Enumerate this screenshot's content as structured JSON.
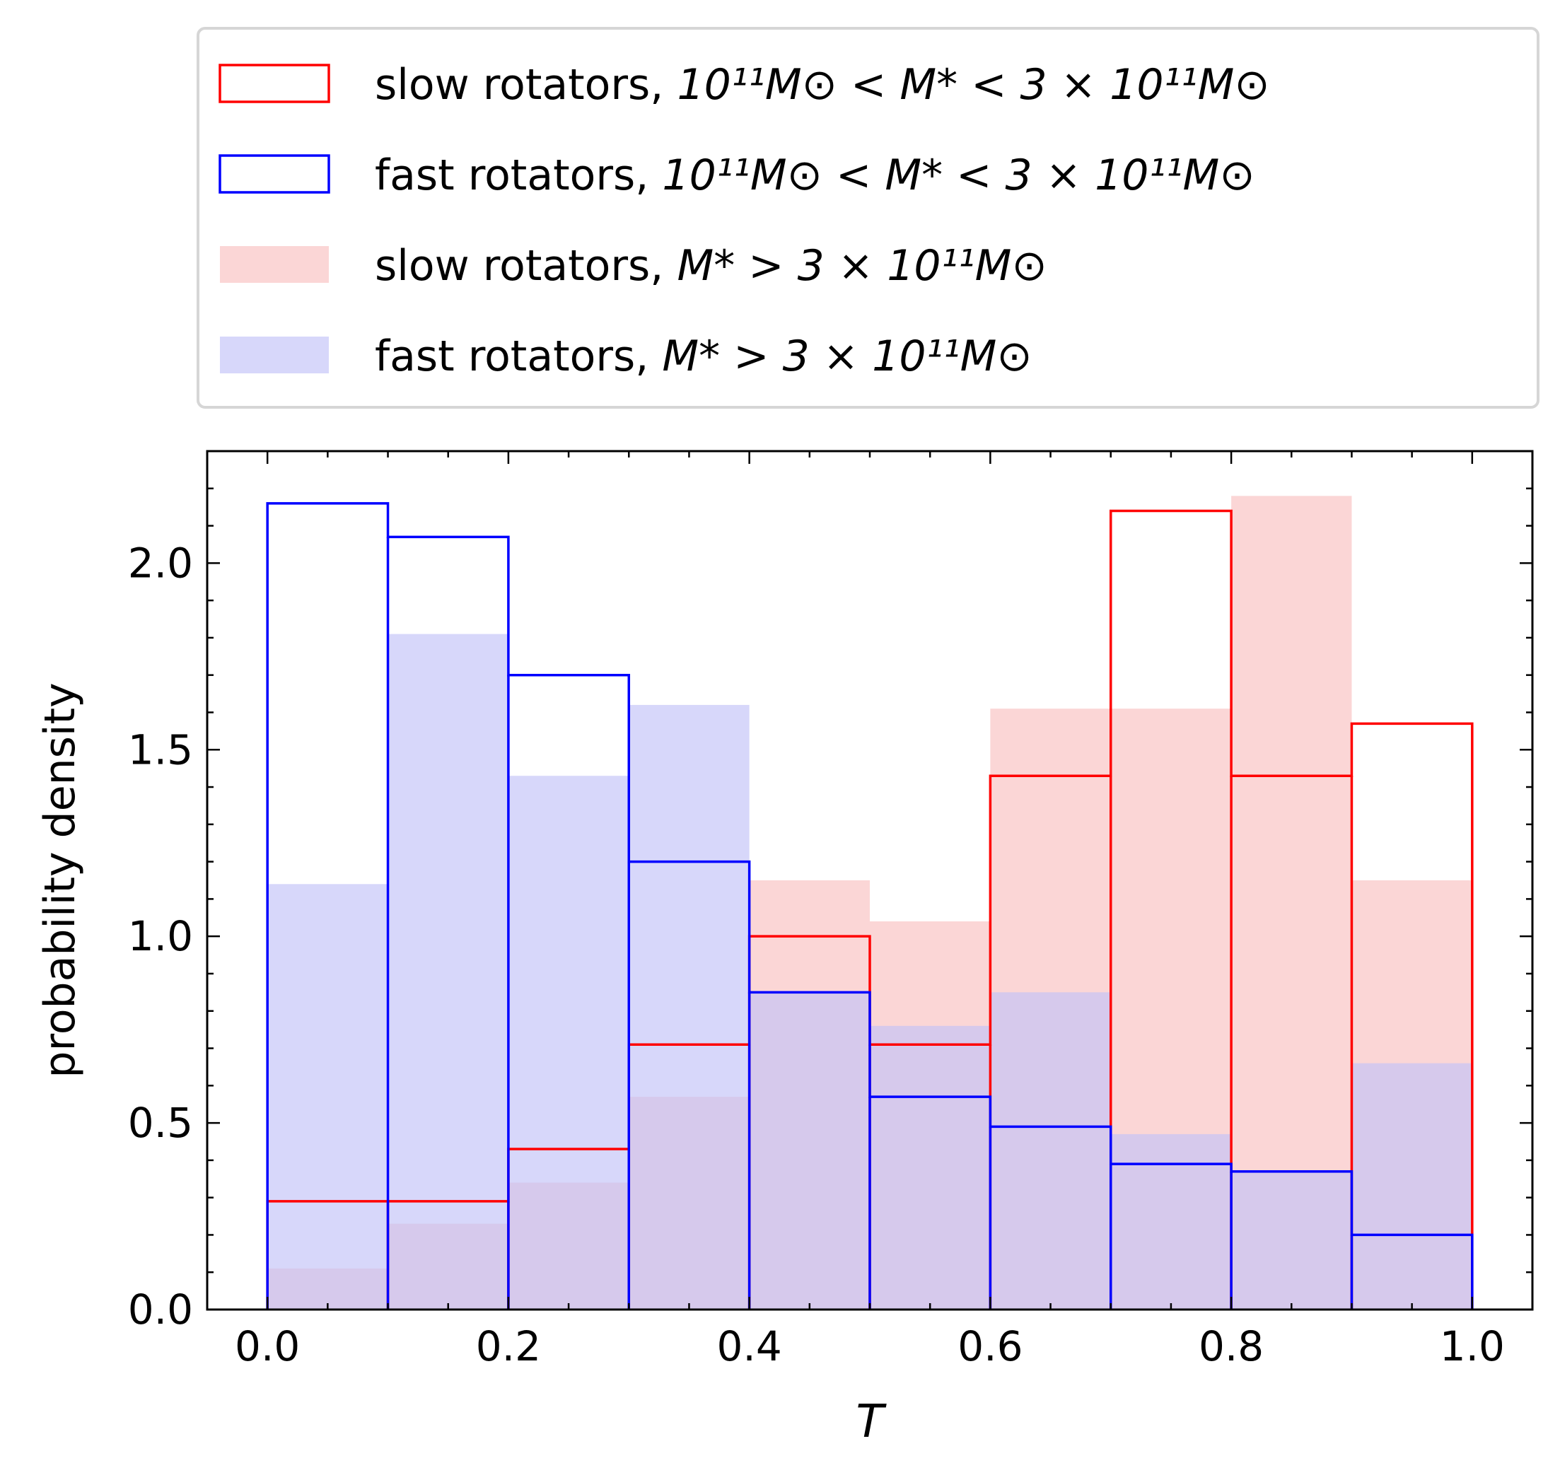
{
  "chart_data": {
    "type": "histogram",
    "xlabel": "T",
    "ylabel": "probability density",
    "xlim": [
      -0.05,
      1.05
    ],
    "ylim": [
      0,
      2.3
    ],
    "xticks": [
      0.0,
      0.2,
      0.4,
      0.6,
      0.8,
      1.0
    ],
    "xtick_labels": [
      "0.0",
      "0.2",
      "0.4",
      "0.6",
      "0.8",
      "1.0"
    ],
    "yticks": [
      0.0,
      0.5,
      1.0,
      1.5,
      2.0
    ],
    "ytick_labels": [
      "0.0",
      "0.5",
      "1.0",
      "1.5",
      "2.0"
    ],
    "bin_edges": [
      0.0,
      0.1,
      0.2,
      0.3,
      0.4,
      0.5,
      0.6,
      0.7,
      0.8,
      0.9,
      1.0
    ],
    "legend_placement": "above plot",
    "series": [
      {
        "id": "slow-high-mass",
        "style": "filled",
        "color": "#f8b4b4",
        "opacity": 0.55,
        "legend_text": "slow rotators, ",
        "legend_math": "M* > 3 × 10¹¹M⊙",
        "values": [
          0.11,
          0.23,
          0.34,
          0.57,
          1.15,
          1.04,
          1.61,
          1.61,
          2.18,
          1.15
        ]
      },
      {
        "id": "fast-high-mass",
        "style": "filled",
        "color": "#c2c2f8",
        "opacity": 0.65,
        "legend_text": "fast rotators, ",
        "legend_math": "M* > 3 × 10¹¹M⊙",
        "values": [
          1.14,
          1.81,
          1.43,
          1.62,
          0.85,
          0.76,
          0.85,
          0.47,
          0.37,
          0.66
        ]
      },
      {
        "id": "slow-mid-mass",
        "style": "step",
        "color": "#ff0000",
        "legend_text": "slow rotators, ",
        "legend_math": "10¹¹M⊙ < M* < 3 × 10¹¹M⊙",
        "values": [
          0.29,
          0.29,
          0.43,
          0.71,
          1.0,
          0.71,
          1.43,
          2.14,
          1.43,
          1.57
        ]
      },
      {
        "id": "fast-mid-mass",
        "style": "step",
        "color": "#0000ff",
        "legend_text": "fast rotators, ",
        "legend_math": "10¹¹M⊙ < M* < 3 × 10¹¹M⊙",
        "values": [
          2.16,
          2.07,
          1.7,
          1.2,
          0.85,
          0.57,
          0.49,
          0.39,
          0.37,
          0.2
        ]
      }
    ],
    "legend_order": [
      "slow-mid-mass",
      "fast-mid-mass",
      "slow-high-mass",
      "fast-high-mass"
    ]
  }
}
